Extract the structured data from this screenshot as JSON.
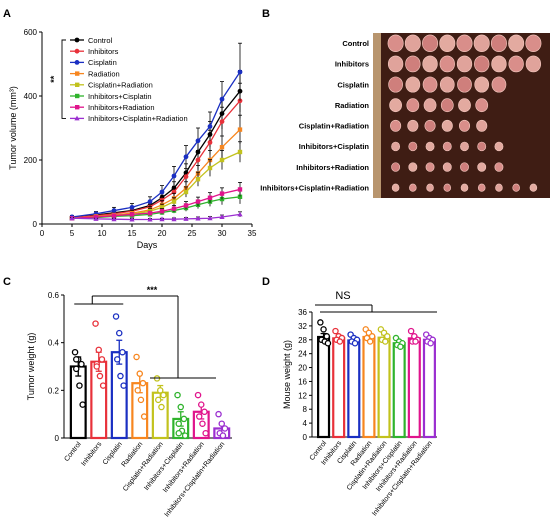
{
  "panel_letters": [
    "A",
    "B",
    "C",
    "D"
  ],
  "colors": {
    "Control": "#000000",
    "Inhibitors": "#e8313a",
    "Cisplatin": "#1a2fc2",
    "Radiation": "#f7861f",
    "Cisplatin+Radiation": "#c2c21d",
    "Inhibitors+Cisplatin": "#2fb32c",
    "Inhibitors+Radiation": "#e0148c",
    "Inhibitors+Cisplatin+Radiation": "#9b2fd0"
  },
  "chart_data": [
    {
      "panel": "A",
      "type": "line",
      "xlabel": "Days",
      "ylabel": "Tumor volume (mm³)",
      "xlim": [
        0,
        35
      ],
      "ylim": [
        0,
        600
      ],
      "xticks": [
        0,
        5,
        10,
        15,
        20,
        25,
        30,
        35
      ],
      "yticks": [
        0,
        200,
        400,
        600
      ],
      "significance": "**",
      "x": [
        5,
        9,
        12,
        15,
        18,
        20,
        22,
        24,
        26,
        28,
        30,
        33
      ],
      "series": [
        {
          "name": "Control",
          "marker": "circle",
          "values": [
            20,
            28,
            35,
            42,
            58,
            82,
            112,
            160,
            225,
            280,
            345,
            415
          ],
          "errors": [
            4,
            6,
            8,
            10,
            14,
            16,
            20,
            28,
            36,
            40,
            48,
            65
          ]
        },
        {
          "name": "Inhibitors",
          "marker": "circle",
          "values": [
            20,
            26,
            32,
            40,
            54,
            75,
            100,
            148,
            200,
            255,
            320,
            385
          ],
          "errors": [
            4,
            6,
            7,
            9,
            12,
            15,
            18,
            25,
            30,
            38,
            45,
            55
          ]
        },
        {
          "name": "Cisplatin",
          "marker": "circle",
          "values": [
            22,
            32,
            42,
            52,
            70,
            100,
            150,
            210,
            260,
            305,
            390,
            475
          ],
          "errors": [
            5,
            7,
            10,
            12,
            15,
            20,
            30,
            35,
            40,
            45,
            55,
            90
          ]
        },
        {
          "name": "Radiation",
          "marker": "square",
          "values": [
            18,
            24,
            28,
            34,
            44,
            60,
            80,
            112,
            158,
            200,
            240,
            295
          ],
          "errors": [
            3,
            5,
            6,
            8,
            10,
            13,
            16,
            20,
            25,
            30,
            35,
            45
          ]
        },
        {
          "name": "Cisplatin+Radiation",
          "marker": "square",
          "values": [
            18,
            22,
            26,
            30,
            40,
            52,
            70,
            100,
            140,
            175,
            200,
            225
          ],
          "errors": [
            3,
            4,
            5,
            6,
            8,
            10,
            12,
            16,
            22,
            26,
            30,
            32
          ]
        },
        {
          "name": "Inhibitors+Cisplatin",
          "marker": "square",
          "values": [
            18,
            20,
            24,
            26,
            30,
            36,
            42,
            50,
            60,
            70,
            78,
            85
          ],
          "errors": [
            3,
            4,
            4,
            5,
            6,
            7,
            8,
            10,
            12,
            15,
            18,
            22
          ]
        },
        {
          "name": "Inhibitors+Radiation",
          "marker": "square",
          "values": [
            18,
            22,
            26,
            30,
            34,
            40,
            48,
            58,
            70,
            82,
            95,
            108
          ],
          "errors": [
            3,
            4,
            5,
            5,
            6,
            8,
            10,
            12,
            14,
            16,
            18,
            22
          ]
        },
        {
          "name": "Inhibitors+Cisplatin+Radiation",
          "marker": "triangle",
          "values": [
            18,
            16,
            15,
            14,
            14,
            15,
            15,
            16,
            17,
            18,
            22,
            30
          ],
          "errors": [
            2,
            2,
            3,
            3,
            3,
            3,
            4,
            4,
            5,
            5,
            6,
            8
          ]
        }
      ]
    },
    {
      "panel": "C",
      "type": "bar",
      "ylabel": "Tumor weight (g)",
      "ylim": [
        0,
        0.6
      ],
      "yticks": [
        0.0,
        0.2,
        0.4,
        0.6
      ],
      "significance": "***",
      "categories": [
        "Control",
        "Inhibitors",
        "Cisplatin",
        "Radiation",
        "Cisplatin+Radiation",
        "Inhibitors+Cisplatin",
        "Inhibitors+Radiation",
        "Inhibitors+Cisplatin+Radiation"
      ],
      "values": [
        0.3,
        0.32,
        0.36,
        0.23,
        0.19,
        0.08,
        0.11,
        0.04
      ],
      "errors": [
        0.04,
        0.04,
        0.05,
        0.04,
        0.03,
        0.03,
        0.03,
        0.02
      ],
      "points": [
        [
          0.36,
          0.33,
          0.31,
          0.29,
          0.22,
          0.14,
          0.33
        ],
        [
          0.48,
          0.37,
          0.33,
          0.31,
          0.26,
          0.22,
          0.3
        ],
        [
          0.51,
          0.44,
          0.36,
          0.33,
          0.26,
          0.22
        ],
        [
          0.34,
          0.27,
          0.23,
          0.2,
          0.16,
          0.09
        ],
        [
          0.25,
          0.2,
          0.18,
          0.16,
          0.13
        ],
        [
          0.18,
          0.13,
          0.08,
          0.06,
          0.03,
          0.01,
          0.02
        ],
        [
          0.18,
          0.14,
          0.11,
          0.09,
          0.06,
          0.02
        ],
        [
          0.1,
          0.06,
          0.04,
          0.02,
          0.01
        ]
      ]
    },
    {
      "panel": "D",
      "type": "bar",
      "ylabel": "Mouse weight (g)",
      "ylim": [
        0,
        36
      ],
      "yticks": [
        0,
        4,
        8,
        12,
        16,
        20,
        24,
        28,
        32,
        36
      ],
      "significance": "NS",
      "categories": [
        "Control",
        "Inhibitors",
        "Cisplatin",
        "Radiation",
        "Cisplatin+Radiation",
        "Inhibitors+Cisplatin",
        "Inhibitors+Radiation",
        "Inhibitors+Cisplatin+Radiation"
      ],
      "values": [
        28.8,
        28.4,
        27.8,
        28.8,
        28.6,
        27.0,
        28.4,
        28.0
      ],
      "errors": [
        1.0,
        0.8,
        0.7,
        0.8,
        0.8,
        0.6,
        0.8,
        0.6
      ],
      "points": [
        [
          33.0,
          31.0,
          29.0,
          28.0,
          27.5,
          27.0
        ],
        [
          30.5,
          29.0,
          28.5,
          28.0,
          27.5
        ],
        [
          29.5,
          28.5,
          28.0,
          27.5,
          27.0
        ],
        [
          31.0,
          30.0,
          29.0,
          28.5,
          27.5
        ],
        [
          31.0,
          30.0,
          29.0,
          28.0,
          27.5
        ],
        [
          28.5,
          27.5,
          27.0,
          26.5,
          26.0
        ],
        [
          30.5,
          29.0,
          28.0,
          27.5,
          27.5
        ],
        [
          29.5,
          28.5,
          28.0,
          27.5,
          27.0
        ]
      ]
    }
  ],
  "photo": {
    "panel": "B",
    "rows": [
      {
        "label": "Control",
        "count": 9,
        "size": 1.0
      },
      {
        "label": "Inhibitors",
        "count": 9,
        "size": 0.95
      },
      {
        "label": "Cisplatin",
        "count": 7,
        "size": 0.9
      },
      {
        "label": "Radiation",
        "count": 6,
        "size": 0.75
      },
      {
        "label": "Cisplatin+Radiation",
        "count": 6,
        "size": 0.62
      },
      {
        "label": "Inhibitors+Cisplatin",
        "count": 7,
        "size": 0.45
      },
      {
        "label": "Inhibitors+Radiation",
        "count": 7,
        "size": 0.45
      },
      {
        "label": "Inhibitors+Cisplatin+Radiation",
        "count": 9,
        "size": 0.35
      }
    ]
  }
}
